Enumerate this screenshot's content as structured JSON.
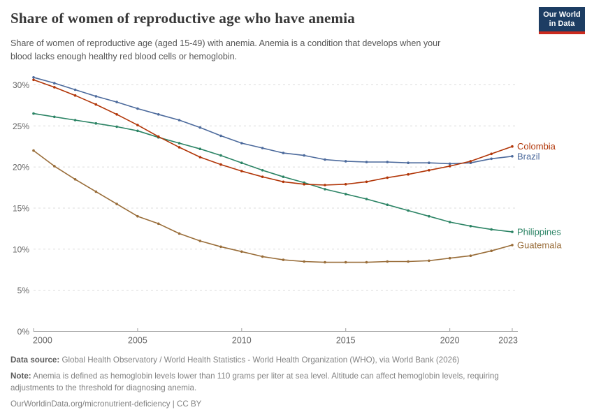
{
  "header": {
    "title": "Share of women of reproductive age who have anemia",
    "subtitle_lines": [
      "Share of women of reproductive age (aged 15-49) with anemia. Anemia is a condition that develops when your",
      "blood lacks enough healthy red blood cells or hemoglobin."
    ],
    "logo": {
      "line1": "Our World",
      "line2": "in Data",
      "bg_color": "#1d3d63",
      "bar_color": "#cc2a1e"
    }
  },
  "chart_data": {
    "type": "line",
    "title": "Share of women of reproductive age who have anemia",
    "x": [
      2000,
      2001,
      2002,
      2003,
      2004,
      2005,
      2006,
      2007,
      2008,
      2009,
      2010,
      2011,
      2012,
      2013,
      2014,
      2015,
      2016,
      2017,
      2018,
      2019,
      2020,
      2021,
      2022,
      2023
    ],
    "series": [
      {
        "name": "Brazil",
        "color": "#4c6a9c",
        "values": [
          30.9,
          30.2,
          29.4,
          28.6,
          27.9,
          27.1,
          26.4,
          25.7,
          24.8,
          23.8,
          22.9,
          22.3,
          21.7,
          21.4,
          20.9,
          20.7,
          20.6,
          20.6,
          20.5,
          20.5,
          20.4,
          20.5,
          21.0,
          21.3
        ]
      },
      {
        "name": "Philippines",
        "color": "#2c8465",
        "values": [
          26.5,
          26.1,
          25.7,
          25.3,
          24.9,
          24.4,
          23.6,
          22.9,
          22.2,
          21.4,
          20.5,
          19.6,
          18.8,
          18.1,
          17.3,
          16.7,
          16.1,
          15.4,
          14.7,
          14.0,
          13.3,
          12.8,
          12.4,
          12.1
        ]
      },
      {
        "name": "Guatemala",
        "color": "#996d39",
        "values": [
          22.0,
          20.1,
          18.5,
          17.0,
          15.5,
          14.0,
          13.1,
          11.9,
          11.0,
          10.3,
          9.7,
          9.1,
          8.7,
          8.5,
          8.4,
          8.4,
          8.4,
          8.5,
          8.5,
          8.6,
          8.9,
          9.2,
          9.8,
          10.5
        ]
      },
      {
        "name": "Colombia",
        "color": "#b13507",
        "values": [
          30.6,
          29.7,
          28.7,
          27.6,
          26.4,
          25.1,
          23.7,
          22.4,
          21.2,
          20.3,
          19.5,
          18.8,
          18.2,
          17.9,
          17.8,
          17.9,
          18.2,
          18.7,
          19.1,
          19.6,
          20.1,
          20.7,
          21.6,
          22.5
        ]
      }
    ],
    "x_ticks": [
      2000,
      2005,
      2010,
      2015,
      2020,
      2023
    ],
    "y_ticks": [
      0,
      5,
      10,
      15,
      20,
      25,
      30
    ],
    "y_tick_suffix": "%",
    "ylim": [
      0,
      31
    ],
    "grid": "horizontal-dashed",
    "legend_position": "end-of-line",
    "grid_color": "#dcdcdc",
    "axis_color": "#a0a0a0",
    "tick_label_color": "#666666"
  },
  "footer": {
    "source_label": "Data source:",
    "source_text": " Global Health Observatory / World Health Statistics - World Health Organization (WHO), via World Bank (2026)",
    "note_label": "Note:",
    "note_text": " Anemia is defined as hemoglobin levels lower than 110 grams per liter at sea level. Altitude can affect hemoglobin levels, requiring adjustments to the threshold for diagnosing anemia.",
    "url": "OurWorldinData.org/micronutrient-deficiency",
    "license": " | CC BY"
  }
}
